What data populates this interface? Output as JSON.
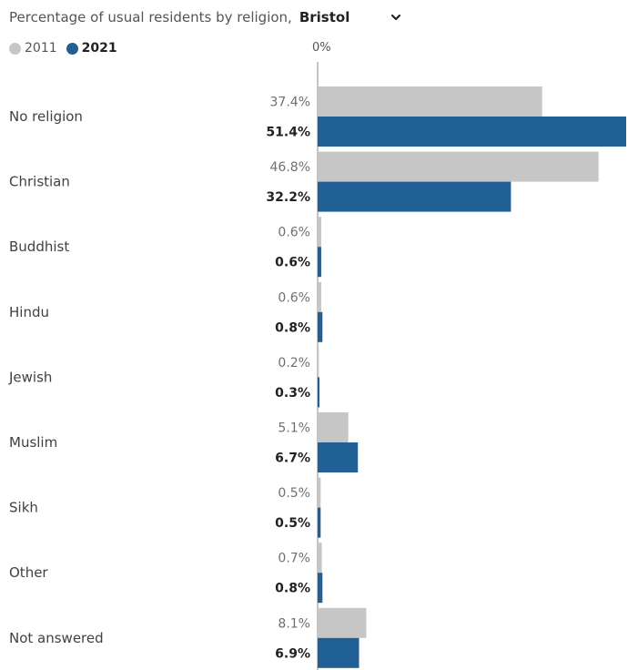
{
  "header": {
    "title": "Percentage of usual residents by religion,",
    "location": "Bristol",
    "dropdown_icon": "chevron-down-icon"
  },
  "legend": [
    {
      "label": "2011",
      "color": "#c6c6c6"
    },
    {
      "label": "2021",
      "color": "#206095"
    }
  ],
  "axis": {
    "zero_label": "0%"
  },
  "chart_data": {
    "type": "bar",
    "orientation": "horizontal",
    "title": "Percentage of usual residents by religion, Bristol",
    "categories": [
      "No religion",
      "Christian",
      "Buddhist",
      "Hindu",
      "Jewish",
      "Muslim",
      "Sikh",
      "Other",
      "Not answered"
    ],
    "series": [
      {
        "name": "2011",
        "color": "#c6c6c6",
        "values": [
          37.4,
          46.8,
          0.6,
          0.6,
          0.2,
          5.1,
          0.5,
          0.7,
          8.1
        ]
      },
      {
        "name": "2021",
        "color": "#206095",
        "values": [
          51.4,
          32.2,
          0.6,
          0.8,
          0.3,
          6.7,
          0.5,
          0.8,
          6.9
        ]
      }
    ],
    "value_suffix": "%",
    "xlim": [
      0,
      51.4
    ],
    "legend_position": "top-left",
    "grid": false
  }
}
